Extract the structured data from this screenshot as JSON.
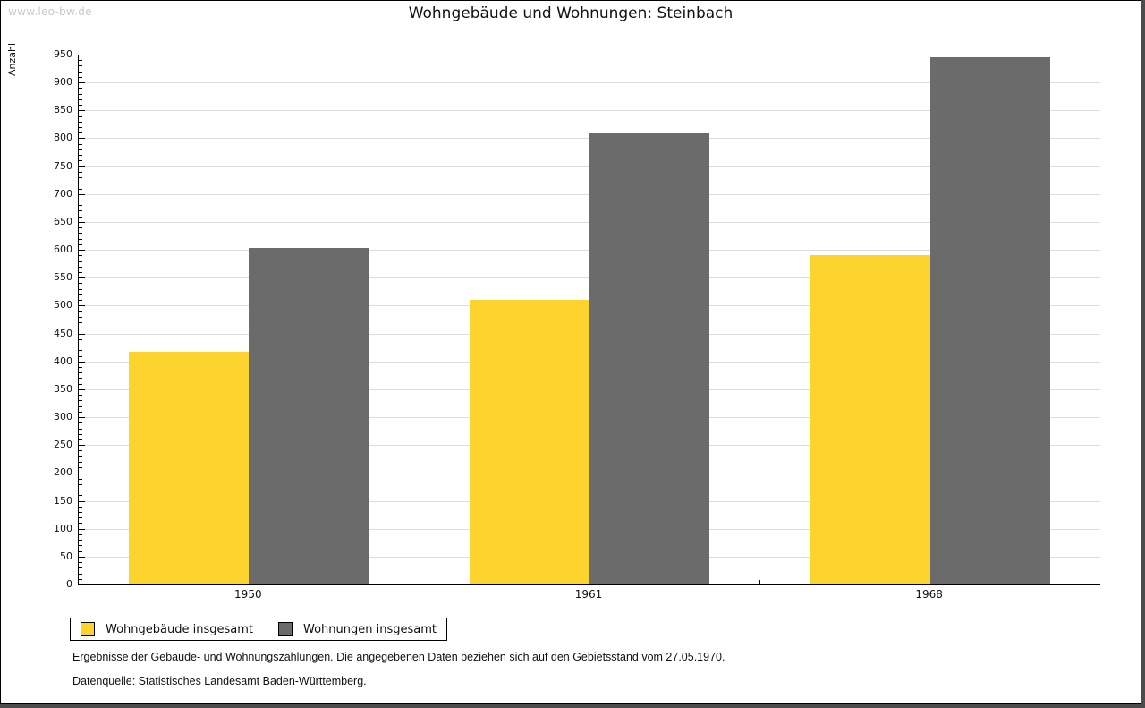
{
  "watermark": "www.leo-bw.de",
  "title": "Wohngebäude und Wohnungen: Steinbach",
  "chart_data": {
    "type": "bar",
    "title": "Wohngebäude und Wohnungen: Steinbach",
    "ylabel": "Anzahl",
    "categories": [
      "1950",
      "1961",
      "1968"
    ],
    "series": [
      {
        "name": "Wohngebäude insgesamt",
        "color": "#fcd42d",
        "values": [
          418,
          510,
          590
        ]
      },
      {
        "name": "Wohnungen insgesamt",
        "color": "#6b6b6b",
        "values": [
          603,
          809,
          946
        ]
      }
    ],
    "ylim": [
      0,
      950
    ],
    "ytick_step": 50,
    "minor_tick_step": 10,
    "grid": "horizontal",
    "gridline_color": "#dcdcdc",
    "legend_position": "bottom-left"
  },
  "legend": {
    "items": [
      {
        "label": "Wohngebäude insgesamt",
        "color": "#fcd42d"
      },
      {
        "label": "Wohnungen insgesamt",
        "color": "#6b6b6b"
      }
    ]
  },
  "footnotes": [
    "Ergebnisse der Gebäude- und Wohnungszählungen. Die angegebenen Daten beziehen sich auf den Gebietsstand vom 27.05.1970.",
    "Datenquelle: Statistisches Landesamt Baden-Württemberg."
  ]
}
